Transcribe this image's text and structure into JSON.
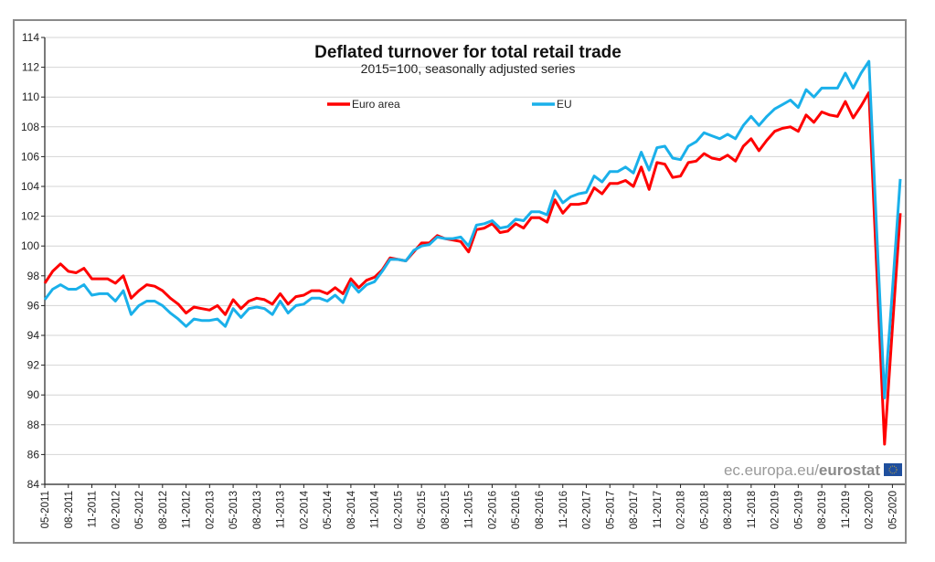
{
  "chart_data": {
    "type": "line",
    "title": "Deflated turnover for total retail trade",
    "subtitle": "2015=100, seasonally adjusted series",
    "xlabel": "",
    "ylabel": "",
    "ylim": [
      84,
      114
    ],
    "yticks": [
      84,
      86,
      88,
      90,
      92,
      94,
      96,
      98,
      100,
      102,
      104,
      106,
      108,
      110,
      112,
      114
    ],
    "grid": true,
    "legend_position": "top",
    "x_start": "05-2011",
    "x_end": "05-2020",
    "xtick_labels": [
      "05-2011",
      "08-2011",
      "11-2011",
      "02-2012",
      "05-2012",
      "08-2012",
      "11-2012",
      "02-2013",
      "05-2013",
      "08-2013",
      "11-2013",
      "02-2014",
      "05-2014",
      "08-2014",
      "11-2014",
      "02-2015",
      "05-2015",
      "08-2015",
      "11-2015",
      "02-2016",
      "05-2016",
      "08-2016",
      "11-2016",
      "02-2017",
      "05-2017",
      "08-2017",
      "11-2017",
      "02-2018",
      "05-2018",
      "08-2018",
      "11-2018",
      "02-2019",
      "05-2019",
      "08-2019",
      "11-2019",
      "02-2020",
      "05-2020"
    ],
    "series": [
      {
        "name": "Euro area",
        "color": "#ff0000",
        "values": [
          97.5,
          98.3,
          98.8,
          98.3,
          98.2,
          98.5,
          97.8,
          97.8,
          97.8,
          97.5,
          98.0,
          96.5,
          97.0,
          97.4,
          97.3,
          97.0,
          96.5,
          96.1,
          95.5,
          95.9,
          95.8,
          95.7,
          96.0,
          95.4,
          96.4,
          95.8,
          96.3,
          96.5,
          96.4,
          96.1,
          96.8,
          96.1,
          96.6,
          96.7,
          97.0,
          97.0,
          96.8,
          97.2,
          96.8,
          97.8,
          97.2,
          97.7,
          97.9,
          98.4,
          99.2,
          99.1,
          99.0,
          99.6,
          100.2,
          100.2,
          100.7,
          100.5,
          100.4,
          100.3,
          99.6,
          101.1,
          101.2,
          101.5,
          100.9,
          101.0,
          101.5,
          101.2,
          101.9,
          101.9,
          101.6,
          103.1,
          102.2,
          102.8,
          102.8,
          102.9,
          103.9,
          103.5,
          104.2,
          104.2,
          104.4,
          104.0,
          105.3,
          103.8,
          105.6,
          105.5,
          104.6,
          104.7,
          105.6,
          105.7,
          106.2,
          105.9,
          105.8,
          106.1,
          105.7,
          106.7,
          107.2,
          106.4,
          107.1,
          107.7,
          107.9,
          108.0,
          107.7,
          108.8,
          108.3,
          109.0,
          108.8,
          108.7,
          109.7,
          108.6,
          109.4,
          110.3,
          98.5,
          86.7,
          94.5,
          102.2
        ]
      },
      {
        "name": "EU",
        "color": "#1ab0ea",
        "values": [
          96.4,
          97.1,
          97.4,
          97.1,
          97.1,
          97.4,
          96.7,
          96.8,
          96.8,
          96.3,
          97.0,
          95.4,
          96.0,
          96.3,
          96.3,
          96.0,
          95.5,
          95.1,
          94.6,
          95.1,
          95.0,
          95.0,
          95.1,
          94.6,
          95.8,
          95.2,
          95.8,
          95.9,
          95.8,
          95.4,
          96.3,
          95.5,
          96.0,
          96.1,
          96.5,
          96.5,
          96.3,
          96.7,
          96.2,
          97.5,
          96.9,
          97.4,
          97.6,
          98.3,
          99.1,
          99.1,
          99.0,
          99.7,
          100.0,
          100.1,
          100.6,
          100.5,
          100.5,
          100.6,
          100.0,
          101.4,
          101.5,
          101.7,
          101.2,
          101.3,
          101.8,
          101.7,
          102.3,
          102.3,
          102.1,
          103.7,
          102.9,
          103.3,
          103.5,
          103.6,
          104.7,
          104.3,
          105.0,
          105.0,
          105.3,
          104.9,
          106.3,
          105.1,
          106.6,
          106.7,
          105.9,
          105.8,
          106.7,
          107.0,
          107.6,
          107.4,
          107.2,
          107.5,
          107.2,
          108.1,
          108.7,
          108.1,
          108.7,
          109.2,
          109.5,
          109.8,
          109.3,
          110.5,
          110.0,
          110.6,
          110.6,
          110.6,
          111.6,
          110.6,
          111.6,
          112.4,
          101.0,
          89.8,
          97.0,
          104.5
        ]
      }
    ]
  },
  "watermark": {
    "prefix": "ec.europa.eu/",
    "brand": "eurostat"
  }
}
